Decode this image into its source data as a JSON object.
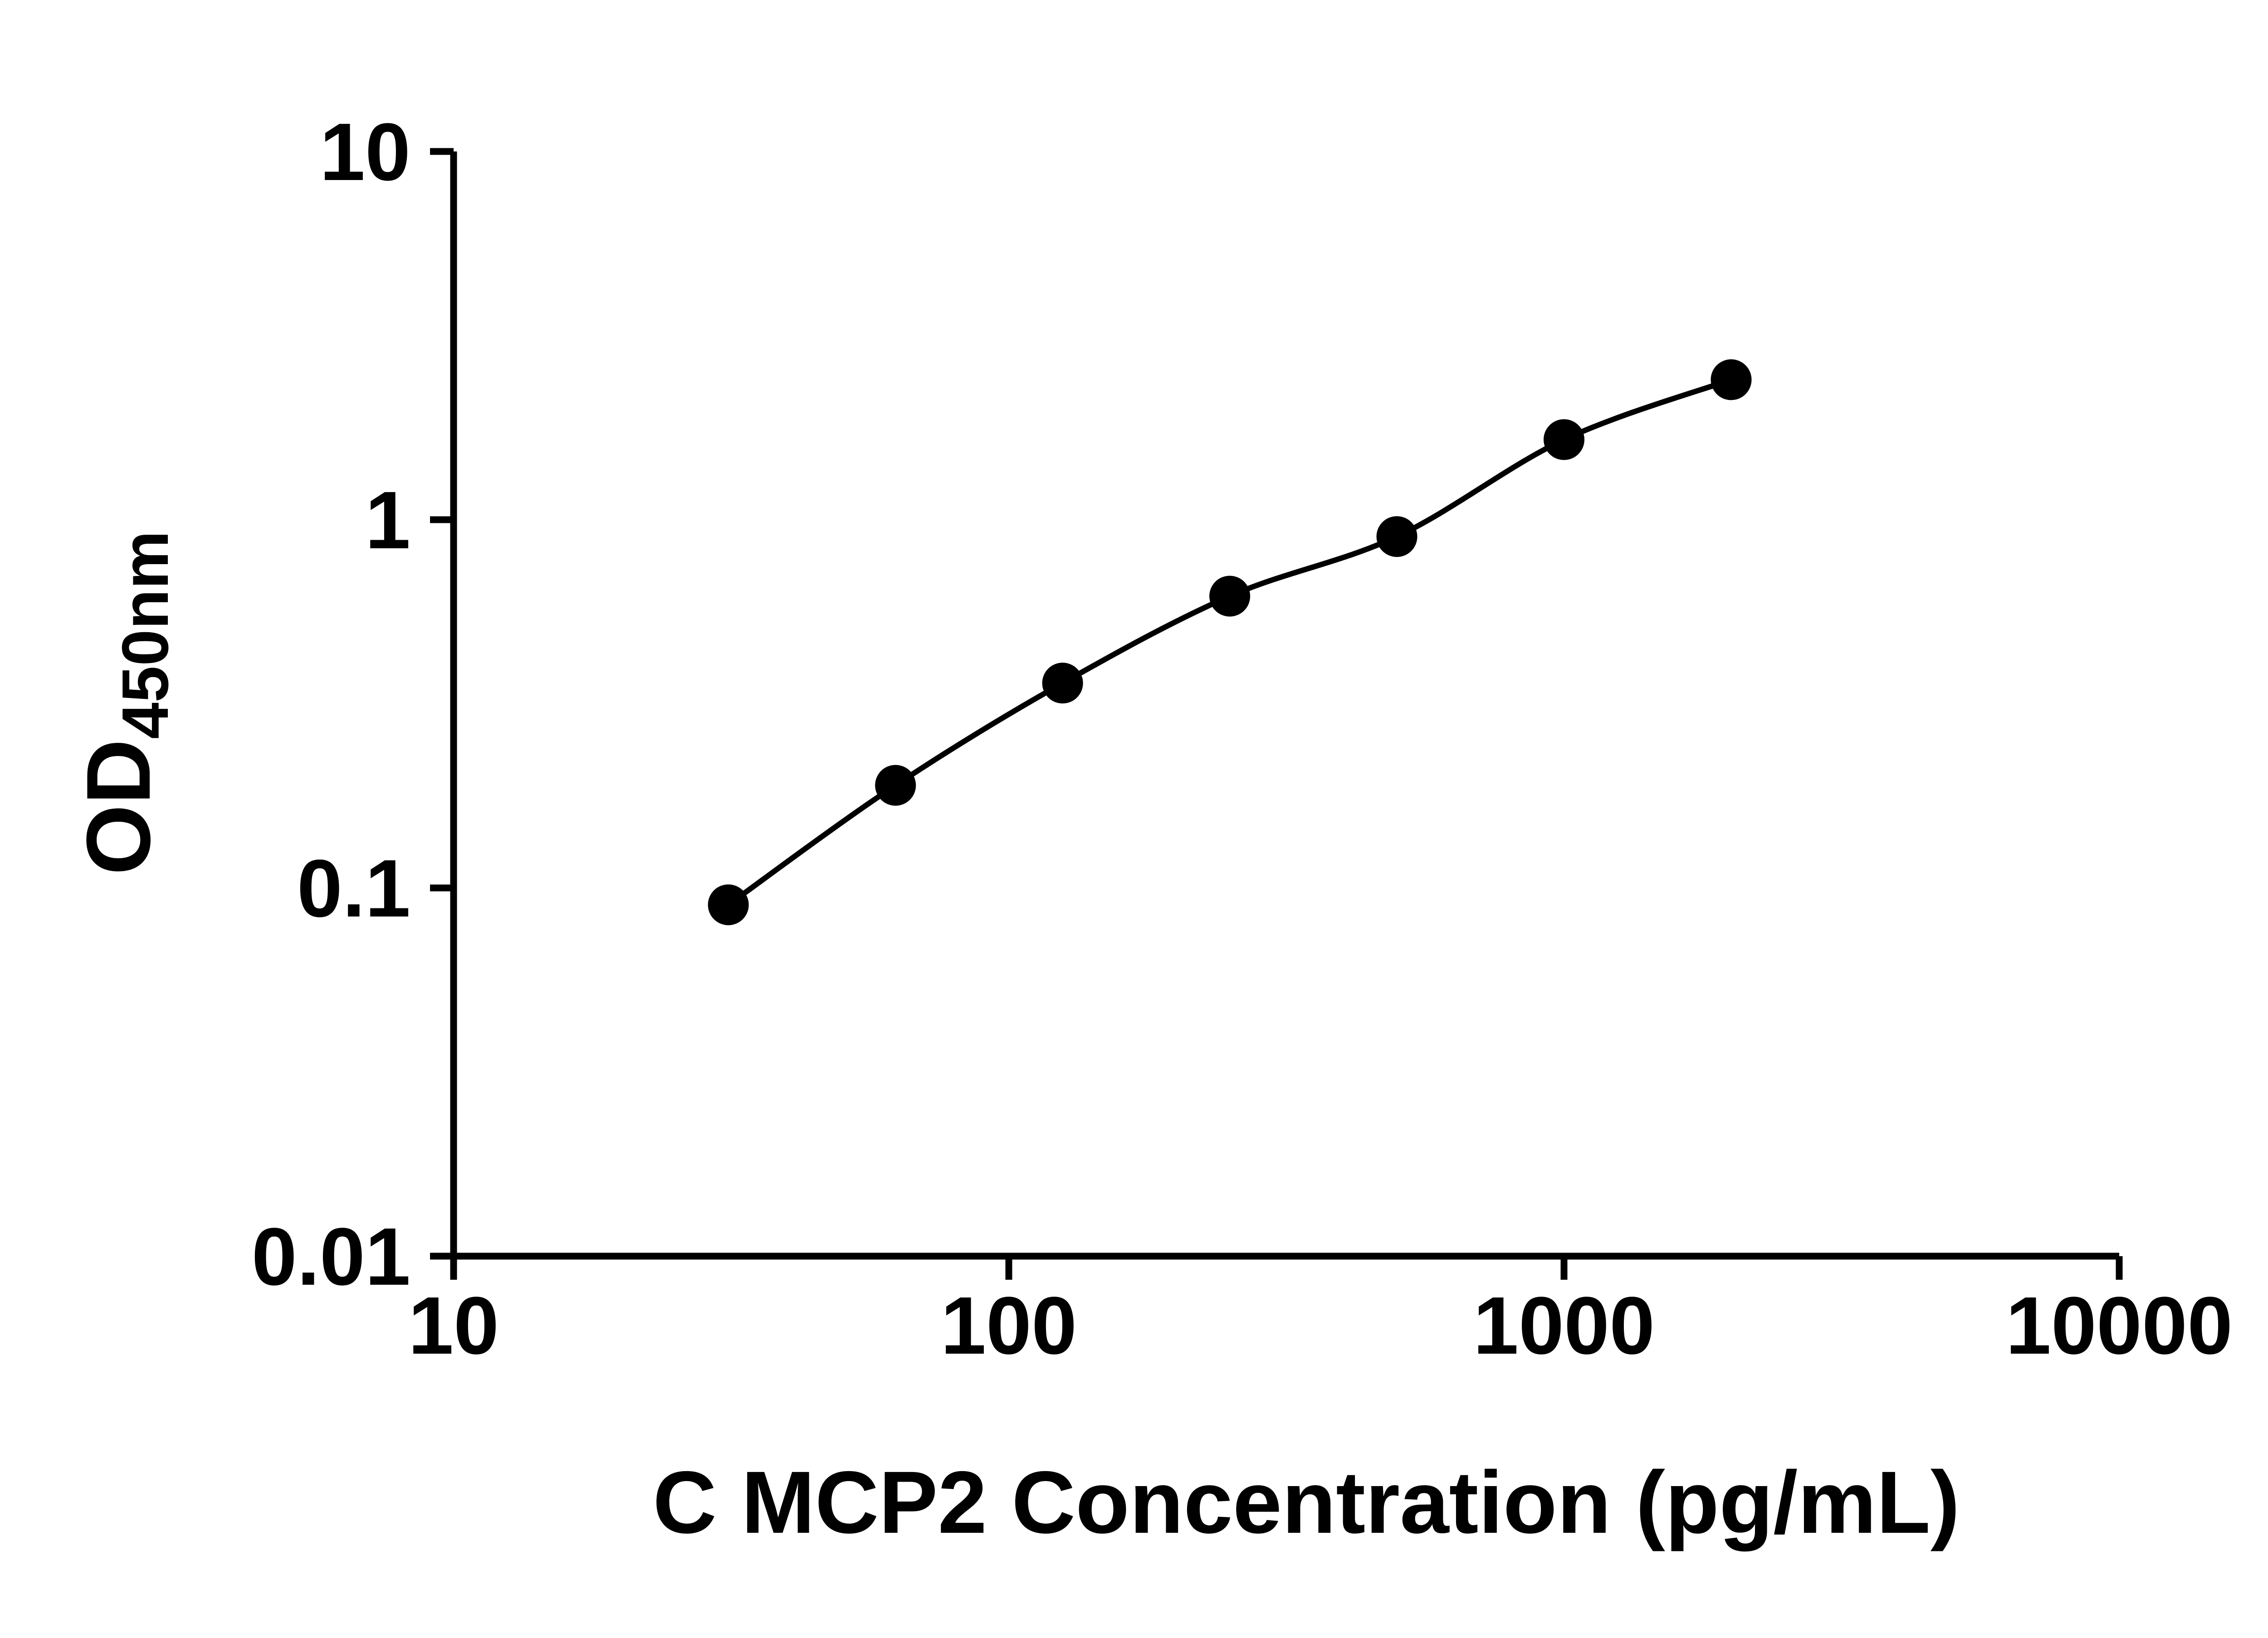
{
  "figure": {
    "background": "#ffffff"
  },
  "chart_data": {
    "type": "scatter",
    "title": "",
    "xlabel": "C MCP2 Concentration (pg/mL)",
    "ylabel": "OD",
    "ylabel_subscript": "450nm",
    "x": [
      31.25,
      62.5,
      125,
      250,
      500,
      1000,
      2000
    ],
    "y": [
      0.09,
      0.19,
      0.36,
      0.62,
      0.9,
      1.65,
      2.4
    ],
    "x_scale": "log10",
    "y_scale": "log10",
    "xlim": [
      10,
      10000
    ],
    "ylim": [
      0.01,
      10
    ],
    "x_ticks": [
      10,
      100,
      1000,
      10000
    ],
    "x_tick_labels": [
      "10",
      "100",
      "1000",
      "10000"
    ],
    "y_ticks": [
      0.01,
      0.1,
      1,
      10
    ],
    "y_tick_labels": [
      "0.01",
      "0.1",
      "1",
      "10"
    ],
    "grid": false,
    "legend": "none",
    "marker": "filled-circle",
    "marker_color": "#000000",
    "line_color": "#000000",
    "axis_color": "#000000"
  }
}
